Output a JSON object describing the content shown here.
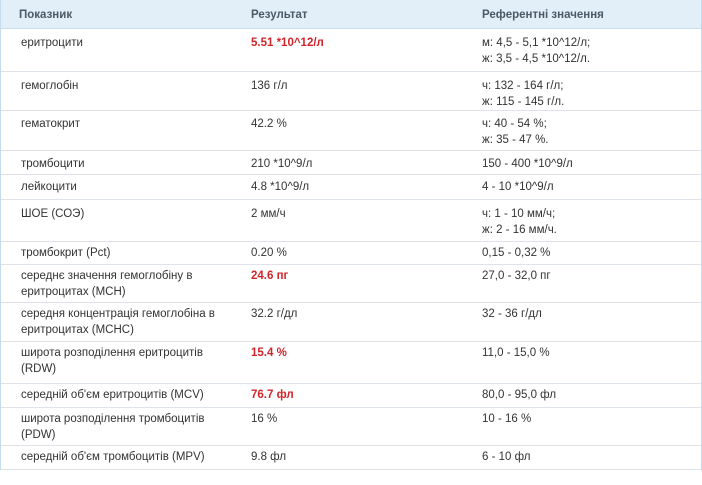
{
  "header": {
    "indicator": "Показник",
    "result": "Результат",
    "reference": "Референтні значення"
  },
  "rows": [
    {
      "name": "еритроцити",
      "result": "5.51 *10^12/л",
      "abnormal": true,
      "ref": [
        "м: 4,5 - 5,1 *10^12/л;",
        "ж: 3,5 - 4,5 *10^12/л."
      ]
    },
    {
      "name": "гемоглобін",
      "result": "136 г/л",
      "abnormal": false,
      "ref": [
        "ч: 132 - 164 г/л;",
        "ж: 115 - 145 г/л."
      ]
    },
    {
      "name": "гематокрит",
      "result": "42.2 %",
      "abnormal": false,
      "ref": [
        "ч: 40 - 54 %;",
        "ж: 35 - 47 %."
      ]
    },
    {
      "name": "тромбоцити",
      "result": "210 *10^9/л",
      "abnormal": false,
      "ref": [
        "150 - 400 *10^9/л"
      ]
    },
    {
      "name": "лейкоцити",
      "result": "4.8 *10^9/л",
      "abnormal": false,
      "ref": [
        "4 - 10 *10^9/л"
      ]
    },
    {
      "name": "ШОЕ (СОЭ)",
      "result": "2 мм/ч",
      "abnormal": false,
      "ref": [
        "ч: 1 - 10 мм/ч;",
        "ж: 2 - 16 мм/ч."
      ]
    },
    {
      "name": "тромбокрит (Pct)",
      "result": "0.20 %",
      "abnormal": false,
      "ref": [
        "0,15 - 0,32 %"
      ]
    },
    {
      "name": "середнє значення гемоглобіну в еритроцитах (MCH)",
      "result": "24.6 пг",
      "abnormal": true,
      "ref": [
        "27,0 - 32,0 пг"
      ]
    },
    {
      "name": "середня концентрація гемоглобіна в еритроцитах (MCHC)",
      "result": "32.2 г/дл",
      "abnormal": false,
      "ref": [
        "32 - 36 г/дл"
      ]
    },
    {
      "name": "широта розподілення еритроцитів (RDW)",
      "result": "15.4 %",
      "abnormal": true,
      "ref": [
        "11,0 - 15,0 %"
      ]
    },
    {
      "name": "середній об'єм еритроцитів (MCV)",
      "result": "76.7 фл",
      "abnormal": true,
      "ref": [
        "80,0 - 95,0 фл"
      ]
    },
    {
      "name": "широта розподілення тромбоцитів (PDW)",
      "result": "16 %",
      "abnormal": false,
      "ref": [
        "10 - 16 %"
      ]
    },
    {
      "name": "середній об'єм тромбоцитів (MPV)",
      "result": "9.8 фл",
      "abnormal": false,
      "ref": [
        "6 - 10 фл"
      ]
    }
  ]
}
